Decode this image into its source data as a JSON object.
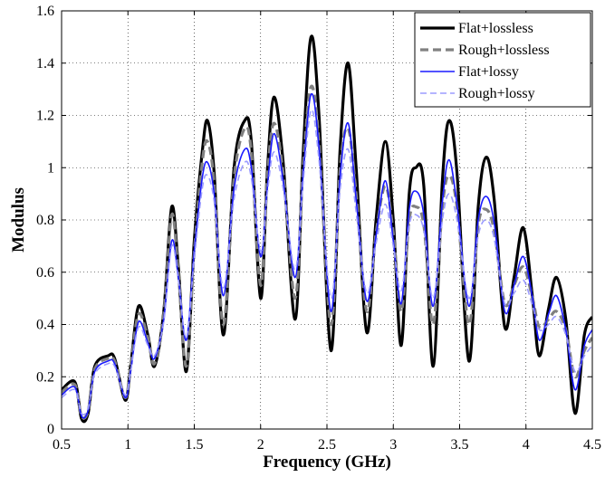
{
  "chart_data": {
    "type": "line",
    "xlabel": "Frequency (GHz)",
    "ylabel": "Modulus",
    "xlim": [
      0.5,
      4.5
    ],
    "ylim": [
      0,
      1.6
    ],
    "x_ticks": [
      "0.5",
      "1",
      "1.5",
      "2",
      "2.5",
      "3",
      "3.5",
      "4",
      "4.5"
    ],
    "y_ticks": [
      "0",
      "0.2",
      "0.4",
      "0.6",
      "0.8",
      "1",
      "1.2",
      "1.4",
      "1.6"
    ],
    "grid": true,
    "legend_position": "top-right",
    "series": [
      {
        "name": "Flat+lossless",
        "color": "#000000",
        "style": "solid-thick",
        "points": [
          [
            0.5,
            0.15
          ],
          [
            0.6,
            0.18
          ],
          [
            0.65,
            0.04
          ],
          [
            0.7,
            0.06
          ],
          [
            0.75,
            0.24
          ],
          [
            0.85,
            0.28
          ],
          [
            0.9,
            0.27
          ],
          [
            0.98,
            0.11
          ],
          [
            1.02,
            0.24
          ],
          [
            1.08,
            0.47
          ],
          [
            1.15,
            0.36
          ],
          [
            1.2,
            0.24
          ],
          [
            1.27,
            0.45
          ],
          [
            1.33,
            0.85
          ],
          [
            1.38,
            0.62
          ],
          [
            1.44,
            0.22
          ],
          [
            1.5,
            0.72
          ],
          [
            1.56,
            1.06
          ],
          [
            1.6,
            1.18
          ],
          [
            1.65,
            0.98
          ],
          [
            1.72,
            0.36
          ],
          [
            1.8,
            1.0
          ],
          [
            1.88,
            1.18
          ],
          [
            1.93,
            1.1
          ],
          [
            2.0,
            0.5
          ],
          [
            2.05,
            0.98
          ],
          [
            2.1,
            1.27
          ],
          [
            2.17,
            1.02
          ],
          [
            2.26,
            0.42
          ],
          [
            2.32,
            1.05
          ],
          [
            2.38,
            1.5
          ],
          [
            2.44,
            1.2
          ],
          [
            2.53,
            0.3
          ],
          [
            2.6,
            1.08
          ],
          [
            2.66,
            1.4
          ],
          [
            2.72,
            1.0
          ],
          [
            2.8,
            0.37
          ],
          [
            2.87,
            0.8
          ],
          [
            2.94,
            1.1
          ],
          [
            3.0,
            0.8
          ],
          [
            3.06,
            0.32
          ],
          [
            3.12,
            0.9
          ],
          [
            3.17,
            1.0
          ],
          [
            3.23,
            0.93
          ],
          [
            3.3,
            0.24
          ],
          [
            3.37,
            0.95
          ],
          [
            3.42,
            1.18
          ],
          [
            3.48,
            0.98
          ],
          [
            3.57,
            0.26
          ],
          [
            3.64,
            0.85
          ],
          [
            3.7,
            1.04
          ],
          [
            3.76,
            0.88
          ],
          [
            3.84,
            0.39
          ],
          [
            3.91,
            0.58
          ],
          [
            3.98,
            0.77
          ],
          [
            4.05,
            0.5
          ],
          [
            4.1,
            0.28
          ],
          [
            4.17,
            0.46
          ],
          [
            4.23,
            0.58
          ],
          [
            4.3,
            0.42
          ],
          [
            4.37,
            0.06
          ],
          [
            4.44,
            0.36
          ],
          [
            4.5,
            0.43
          ]
        ]
      },
      {
        "name": "Rough+lossless",
        "color": "#808080",
        "style": "dashed-thick",
        "points": [
          [
            0.5,
            0.14
          ],
          [
            0.6,
            0.17
          ],
          [
            0.65,
            0.05
          ],
          [
            0.7,
            0.07
          ],
          [
            0.75,
            0.23
          ],
          [
            0.85,
            0.27
          ],
          [
            0.9,
            0.26
          ],
          [
            0.98,
            0.12
          ],
          [
            1.02,
            0.24
          ],
          [
            1.08,
            0.44
          ],
          [
            1.15,
            0.35
          ],
          [
            1.2,
            0.25
          ],
          [
            1.27,
            0.44
          ],
          [
            1.33,
            0.82
          ],
          [
            1.38,
            0.6
          ],
          [
            1.44,
            0.24
          ],
          [
            1.5,
            0.68
          ],
          [
            1.56,
            1.02
          ],
          [
            1.6,
            1.1
          ],
          [
            1.65,
            0.94
          ],
          [
            1.72,
            0.4
          ],
          [
            1.8,
            0.96
          ],
          [
            1.88,
            1.15
          ],
          [
            1.93,
            1.06
          ],
          [
            2.0,
            0.55
          ],
          [
            2.05,
            0.96
          ],
          [
            2.1,
            1.17
          ],
          [
            2.17,
            0.98
          ],
          [
            2.26,
            0.5
          ],
          [
            2.32,
            1.0
          ],
          [
            2.38,
            1.31
          ],
          [
            2.44,
            1.1
          ],
          [
            2.53,
            0.4
          ],
          [
            2.6,
            1.0
          ],
          [
            2.66,
            1.15
          ],
          [
            2.72,
            0.9
          ],
          [
            2.8,
            0.45
          ],
          [
            2.87,
            0.75
          ],
          [
            2.94,
            0.93
          ],
          [
            3.0,
            0.75
          ],
          [
            3.06,
            0.45
          ],
          [
            3.12,
            0.8
          ],
          [
            3.17,
            0.85
          ],
          [
            3.23,
            0.78
          ],
          [
            3.3,
            0.4
          ],
          [
            3.37,
            0.85
          ],
          [
            3.42,
            0.97
          ],
          [
            3.48,
            0.85
          ],
          [
            3.57,
            0.4
          ],
          [
            3.64,
            0.78
          ],
          [
            3.7,
            0.84
          ],
          [
            3.76,
            0.76
          ],
          [
            3.84,
            0.48
          ],
          [
            3.91,
            0.55
          ],
          [
            3.98,
            0.62
          ],
          [
            4.05,
            0.5
          ],
          [
            4.1,
            0.39
          ],
          [
            4.17,
            0.42
          ],
          [
            4.23,
            0.45
          ],
          [
            4.3,
            0.38
          ],
          [
            4.37,
            0.2
          ],
          [
            4.44,
            0.3
          ],
          [
            4.5,
            0.35
          ]
        ]
      },
      {
        "name": "Flat+lossy",
        "color": "#1a1aff",
        "style": "solid-thin",
        "points": [
          [
            0.5,
            0.13
          ],
          [
            0.6,
            0.16
          ],
          [
            0.65,
            0.05
          ],
          [
            0.7,
            0.07
          ],
          [
            0.75,
            0.22
          ],
          [
            0.85,
            0.26
          ],
          [
            0.9,
            0.25
          ],
          [
            0.98,
            0.12
          ],
          [
            1.02,
            0.22
          ],
          [
            1.08,
            0.41
          ],
          [
            1.15,
            0.33
          ],
          [
            1.2,
            0.27
          ],
          [
            1.27,
            0.42
          ],
          [
            1.33,
            0.72
          ],
          [
            1.38,
            0.58
          ],
          [
            1.44,
            0.34
          ],
          [
            1.5,
            0.68
          ],
          [
            1.56,
            0.96
          ],
          [
            1.6,
            1.02
          ],
          [
            1.65,
            0.9
          ],
          [
            1.72,
            0.51
          ],
          [
            1.8,
            0.92
          ],
          [
            1.88,
            1.07
          ],
          [
            1.93,
            1.0
          ],
          [
            2.0,
            0.66
          ],
          [
            2.05,
            0.92
          ],
          [
            2.1,
            1.13
          ],
          [
            2.17,
            0.95
          ],
          [
            2.26,
            0.58
          ],
          [
            2.32,
            0.97
          ],
          [
            2.38,
            1.28
          ],
          [
            2.44,
            1.08
          ],
          [
            2.53,
            0.45
          ],
          [
            2.6,
            0.97
          ],
          [
            2.66,
            1.17
          ],
          [
            2.72,
            0.88
          ],
          [
            2.8,
            0.49
          ],
          [
            2.87,
            0.74
          ],
          [
            2.94,
            0.95
          ],
          [
            3.0,
            0.72
          ],
          [
            3.06,
            0.48
          ],
          [
            3.12,
            0.84
          ],
          [
            3.17,
            0.91
          ],
          [
            3.23,
            0.82
          ],
          [
            3.3,
            0.47
          ],
          [
            3.37,
            0.87
          ],
          [
            3.42,
            1.03
          ],
          [
            3.48,
            0.86
          ],
          [
            3.57,
            0.47
          ],
          [
            3.64,
            0.8
          ],
          [
            3.7,
            0.89
          ],
          [
            3.76,
            0.79
          ],
          [
            3.84,
            0.45
          ],
          [
            3.91,
            0.55
          ],
          [
            3.98,
            0.66
          ],
          [
            4.05,
            0.5
          ],
          [
            4.1,
            0.34
          ],
          [
            4.17,
            0.44
          ],
          [
            4.23,
            0.51
          ],
          [
            4.3,
            0.38
          ],
          [
            4.37,
            0.15
          ],
          [
            4.44,
            0.32
          ],
          [
            4.5,
            0.38
          ]
        ]
      },
      {
        "name": "Rough+lossy",
        "color": "#9b9bff",
        "style": "dashed-thin",
        "points": [
          [
            0.5,
            0.12
          ],
          [
            0.6,
            0.15
          ],
          [
            0.65,
            0.06
          ],
          [
            0.7,
            0.08
          ],
          [
            0.75,
            0.21
          ],
          [
            0.85,
            0.25
          ],
          [
            0.9,
            0.24
          ],
          [
            0.98,
            0.13
          ],
          [
            1.02,
            0.22
          ],
          [
            1.08,
            0.39
          ],
          [
            1.15,
            0.32
          ],
          [
            1.2,
            0.28
          ],
          [
            1.27,
            0.41
          ],
          [
            1.33,
            0.7
          ],
          [
            1.38,
            0.57
          ],
          [
            1.44,
            0.35
          ],
          [
            1.5,
            0.65
          ],
          [
            1.56,
            0.92
          ],
          [
            1.6,
            0.97
          ],
          [
            1.65,
            0.87
          ],
          [
            1.72,
            0.54
          ],
          [
            1.8,
            0.88
          ],
          [
            1.88,
            1.02
          ],
          [
            1.93,
            0.96
          ],
          [
            2.0,
            0.68
          ],
          [
            2.05,
            0.9
          ],
          [
            2.1,
            1.06
          ],
          [
            2.17,
            0.92
          ],
          [
            2.26,
            0.61
          ],
          [
            2.32,
            0.94
          ],
          [
            2.38,
            1.22
          ],
          [
            2.44,
            1.03
          ],
          [
            2.53,
            0.5
          ],
          [
            2.6,
            0.92
          ],
          [
            2.66,
            1.07
          ],
          [
            2.72,
            0.83
          ],
          [
            2.8,
            0.52
          ],
          [
            2.87,
            0.71
          ],
          [
            2.94,
            0.86
          ],
          [
            3.0,
            0.7
          ],
          [
            3.06,
            0.53
          ],
          [
            3.12,
            0.78
          ],
          [
            3.17,
            0.82
          ],
          [
            3.23,
            0.76
          ],
          [
            3.3,
            0.5
          ],
          [
            3.37,
            0.8
          ],
          [
            3.42,
            0.9
          ],
          [
            3.48,
            0.8
          ],
          [
            3.57,
            0.5
          ],
          [
            3.64,
            0.74
          ],
          [
            3.7,
            0.8
          ],
          [
            3.76,
            0.73
          ],
          [
            3.84,
            0.48
          ],
          [
            3.91,
            0.52
          ],
          [
            3.98,
            0.57
          ],
          [
            4.05,
            0.47
          ],
          [
            4.1,
            0.38
          ],
          [
            4.17,
            0.4
          ],
          [
            4.23,
            0.43
          ],
          [
            4.3,
            0.36
          ],
          [
            4.37,
            0.22
          ],
          [
            4.44,
            0.28
          ],
          [
            4.5,
            0.32
          ]
        ]
      }
    ]
  }
}
